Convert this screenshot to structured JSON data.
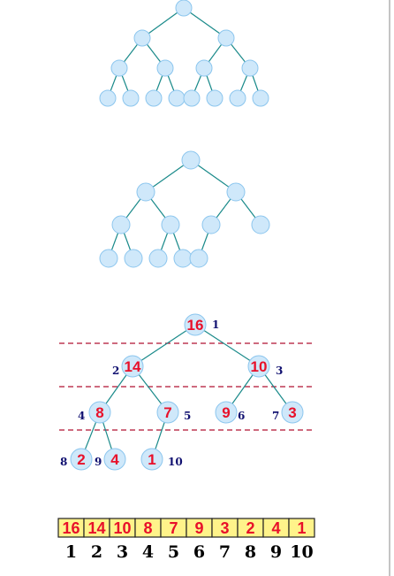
{
  "heap": {
    "values": [
      "16",
      "14",
      "10",
      "8",
      "7",
      "9",
      "3",
      "2",
      "4",
      "1"
    ],
    "indices": [
      "1",
      "2",
      "3",
      "4",
      "5",
      "6",
      "7",
      "8",
      "9",
      "10"
    ]
  },
  "array": {
    "values": [
      "16",
      "14",
      "10",
      "8",
      "7",
      "9",
      "3",
      "2",
      "4",
      "1"
    ],
    "indices": [
      "1",
      "2",
      "3",
      "4",
      "5",
      "6",
      "7",
      "8",
      "9",
      "10"
    ]
  }
}
